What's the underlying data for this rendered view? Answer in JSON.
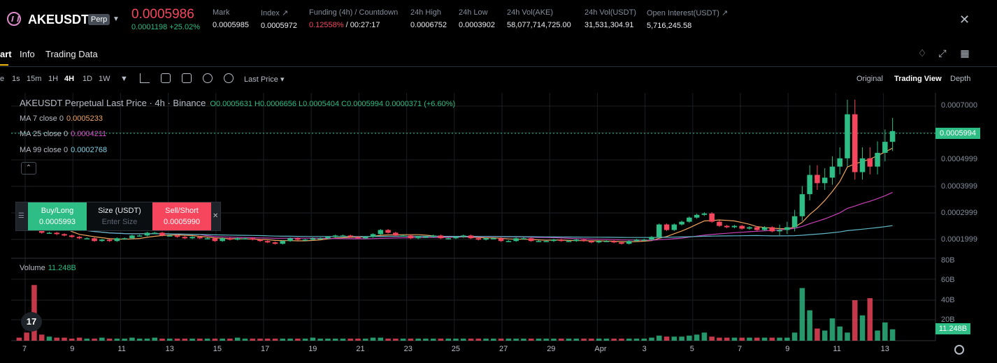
{
  "header": {
    "symbol": "AKEUSDT",
    "badge": "Perp",
    "last_price": "0.0005986",
    "change": "0.0001198 +25.02%",
    "stats": [
      {
        "label": "Mark",
        "value": "0.0005985"
      },
      {
        "label": "Index ↗",
        "value": "0.0005972"
      },
      {
        "label": "Funding (4h) / Countdown",
        "value_red": "0.12558%",
        "value": " / 00:27:17"
      },
      {
        "label": "24h High",
        "value": "0.0006752"
      },
      {
        "label": "24h Low",
        "value": "0.0003902"
      },
      {
        "label": "24h Vol(AKE)",
        "value": "58,077,714,725.00"
      },
      {
        "label": "24h Vol(USDT)",
        "value": "31,531,304.91"
      },
      {
        "label": "Open Interest(USDT) ↗",
        "value": "5,716,245.58"
      }
    ]
  },
  "tabs": [
    "art",
    "Info",
    "Trading Data"
  ],
  "toolbar": {
    "intervals": [
      "e",
      "1s",
      "15m",
      "1H",
      "4H",
      "1D",
      "1W"
    ],
    "active_interval": "4H",
    "price_type": "Last Price",
    "views": [
      "Original",
      "Trading View",
      "Depth"
    ],
    "active_view": "Trading View"
  },
  "legend": {
    "title": "AKEUSDT Perpetual Last Price · 4h · Binance",
    "ohlc": "O0.0005631 H0.0006656 L0.0005404 C0.0005994 0.0000371 (+6.60%)",
    "ma": [
      {
        "label": "MA 7 close 0",
        "value": "0.0005233",
        "color": "#f0a35e"
      },
      {
        "label": "MA 25 close 0",
        "value": "0.0004211",
        "color": "#c840b8"
      },
      {
        "label": "MA 99 close 0",
        "value": "0.0002768",
        "color": "#7fd3e6"
      }
    ]
  },
  "order_panel": {
    "buy_label": "Buy/Long",
    "buy_price": "0.0005993",
    "size_label": "Size (USDT)",
    "size_placeholder": "Enter Size",
    "sell_label": "Sell/Short",
    "sell_price": "0.0005990"
  },
  "price_axis": [
    "0.0007000",
    "0.0004999",
    "0.0003999",
    "0.0002999",
    "0.0001999"
  ],
  "current_price_tag": "0.0005994",
  "volume": {
    "label": "Volume",
    "value": "11.248B",
    "axis": [
      "80B",
      "60B",
      "40B",
      "20B"
    ],
    "tag": "11.248B"
  },
  "dates": [
    "7",
    "9",
    "11",
    "13",
    "15",
    "17",
    "19",
    "21",
    "23",
    "25",
    "27",
    "29",
    "Apr",
    "3",
    "5",
    "7",
    "9",
    "11",
    "13"
  ],
  "logo": "17",
  "colors": {
    "up": "#2ebd85",
    "down": "#f6465d"
  },
  "chart_data": {
    "type": "candlestick",
    "interval": "4h",
    "price_ylim": [
      0.00015,
      0.00072
    ],
    "volume_ylim": [
      0,
      80
    ],
    "closes": [
      0.00032,
      0.00028,
      0.00024,
      0.00023,
      0.00023,
      0.000225,
      0.00022,
      0.000215,
      0.00021,
      0.00021,
      0.0002,
      0.000205,
      0.0002,
      0.00021,
      0.00021,
      0.00022,
      0.00022,
      0.00023,
      0.00023,
      0.00022,
      0.00022,
      0.000215,
      0.00021,
      0.000215,
      0.00021,
      0.00021,
      0.0002,
      0.00021,
      0.000205,
      0.00021,
      0.00021,
      0.000205,
      0.0002,
      0.000195,
      0.00019,
      0.0002,
      0.00021,
      0.000205,
      0.000205,
      0.00021,
      0.00021,
      0.000215,
      0.00022,
      0.00022,
      0.000215,
      0.00021,
      0.000215,
      0.000225,
      0.00024,
      0.00023,
      0.00022,
      0.00022,
      0.00021,
      0.000215,
      0.000215,
      0.00022,
      0.00021,
      0.00021,
      0.000215,
      0.00022,
      0.00021,
      0.000205,
      0.00021,
      0.00021,
      0.0002,
      0.0002,
      0.00021,
      0.00021,
      0.0002,
      0.0002,
      0.0002,
      0.000205,
      0.0002,
      0.0002,
      0.000205,
      0.0002,
      0.000195,
      0.0002,
      0.0002,
      0.000195,
      0.00019,
      0.0002,
      0.000205,
      0.000205,
      0.000215,
      0.00026,
      0.00024,
      0.00026,
      0.00027,
      0.000285,
      0.000295,
      0.0003,
      0.00027,
      0.000255,
      0.00025,
      0.000255,
      0.000245,
      0.00025,
      0.00024,
      0.00025,
      0.000235,
      0.00024,
      0.00025,
      0.00029,
      0.00037,
      0.00044,
      0.00041,
      0.00043,
      0.00047,
      0.0005,
      0.00066,
      0.00045,
      0.0005,
      0.00047,
      0.00052,
      0.00056,
      0.000599
    ],
    "volumes": [
      3,
      8,
      55,
      6,
      4,
      3,
      3,
      2,
      3,
      2,
      2,
      3,
      2,
      2,
      2,
      3,
      2,
      2,
      3,
      2,
      2,
      2,
      2,
      2,
      2,
      2,
      2,
      2,
      2,
      3,
      2,
      2,
      2,
      2,
      2,
      2,
      2,
      2,
      2,
      3,
      2,
      2,
      2,
      2,
      2,
      2,
      2,
      3,
      3,
      2,
      2,
      2,
      2,
      2,
      2,
      2,
      2,
      2,
      2,
      2,
      2,
      2,
      2,
      2,
      2,
      2,
      2,
      2,
      2,
      2,
      2,
      2,
      2,
      2,
      2,
      2,
      2,
      2,
      2,
      2,
      2,
      2,
      2,
      2,
      3,
      5,
      4,
      4,
      4,
      5,
      6,
      8,
      4,
      3,
      3,
      3,
      3,
      3,
      3,
      3,
      3,
      3,
      3,
      8,
      52,
      30,
      12,
      10,
      22,
      14,
      8,
      40,
      25,
      42,
      10,
      18,
      11.248
    ],
    "moving_averages": [
      {
        "name": "MA 7 close 0",
        "value": 0.0005233
      },
      {
        "name": "MA 25 close 0",
        "value": 0.0004211
      },
      {
        "name": "MA 99 close 0",
        "value": 0.0002768
      }
    ]
  }
}
